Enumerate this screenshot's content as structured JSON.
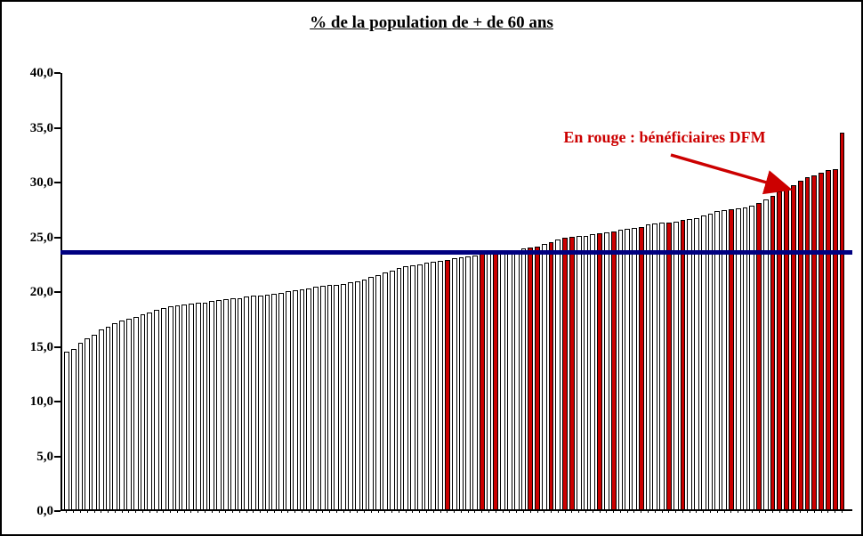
{
  "chart_data": {
    "type": "bar",
    "title": "% de la population de + de 60 ans",
    "ylabel": "",
    "xlabel": "",
    "ylim": [
      0,
      40
    ],
    "y_ticks": [
      "40,0",
      "35,0",
      "30,0",
      "25,0",
      "20,0",
      "15,0",
      "10,0",
      "5,0",
      "0,0"
    ],
    "grid": false,
    "legend": "none",
    "values": [
      14.4,
      14.6,
      15.2,
      15.6,
      15.9,
      16.4,
      16.7,
      17.0,
      17.2,
      17.4,
      17.6,
      17.8,
      18.0,
      18.2,
      18.4,
      18.5,
      18.6,
      18.7,
      18.8,
      18.9,
      18.9,
      19.0,
      19.1,
      19.2,
      19.3,
      19.3,
      19.4,
      19.5,
      19.5,
      19.6,
      19.7,
      19.8,
      19.9,
      20.0,
      20.1,
      20.2,
      20.3,
      20.4,
      20.5,
      20.5,
      20.6,
      20.7,
      20.8,
      21.0,
      21.2,
      21.4,
      21.6,
      21.8,
      22.0,
      22.2,
      22.3,
      22.4,
      22.5,
      22.6,
      22.7,
      22.8,
      22.9,
      23.0,
      23.1,
      23.2,
      23.3,
      23.4,
      23.5,
      23.5,
      23.6,
      23.7,
      23.8,
      23.9,
      24.0,
      24.2,
      24.4,
      24.6,
      24.8,
      24.9,
      25.0,
      25.0,
      25.1,
      25.2,
      25.3,
      25.4,
      25.5,
      25.6,
      25.7,
      25.8,
      26.0,
      26.1,
      26.2,
      26.2,
      26.3,
      26.4,
      26.5,
      26.6,
      26.8,
      27.0,
      27.2,
      27.3,
      27.4,
      27.5,
      27.6,
      27.7,
      28.0,
      28.3,
      28.6,
      29.0,
      29.3,
      29.6,
      30.0,
      30.3,
      30.5,
      30.7,
      31.0,
      31.1,
      34.4
    ],
    "red_indices": [
      55,
      60,
      62,
      67,
      68,
      70,
      72,
      73,
      77,
      79,
      83,
      87,
      89,
      96,
      100,
      102,
      103,
      104,
      105,
      106,
      107,
      108,
      109,
      110,
      111,
      112
    ],
    "reference_line": {
      "value": 23.4,
      "color": "#000080"
    },
    "annotation": {
      "text": "En rouge : bénéficiaires DFM",
      "color": "#cc0000"
    },
    "colors": {
      "bar_fill": "#ffffff",
      "bar_border": "#000000",
      "red_bar": "#cc0000",
      "reference_line": "#000080",
      "annotation": "#cc0000",
      "axis": "#000000"
    }
  }
}
